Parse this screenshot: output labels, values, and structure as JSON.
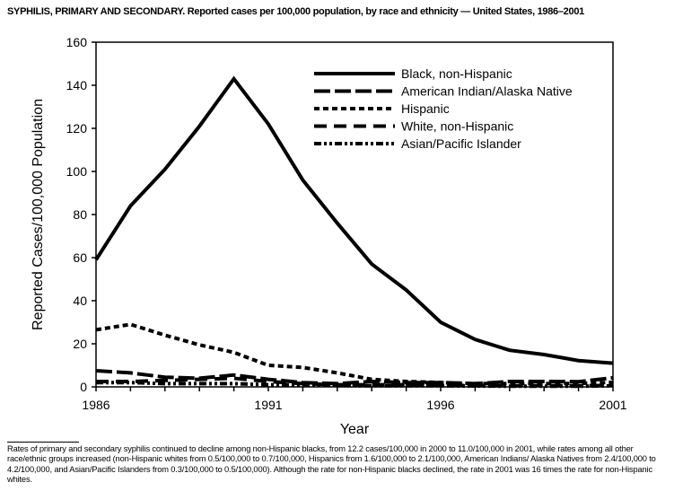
{
  "chart_data": {
    "type": "line",
    "title": "SYPHILIS, PRIMARY AND SECONDARY. Reported cases per 100,000 population, by race and ethnicity — United States, 1986–2001",
    "xlabel": "Year",
    "ylabel": "Reported Cases/100,000 Population",
    "xlim": [
      1986,
      2001
    ],
    "ylim": [
      0,
      160
    ],
    "xticks": [
      1986,
      1991,
      1996,
      2001
    ],
    "yticks": [
      0,
      20,
      40,
      60,
      80,
      100,
      120,
      140,
      160
    ],
    "grid": false,
    "legend": "top-right",
    "x": [
      1986,
      1987,
      1988,
      1989,
      1990,
      1991,
      1992,
      1993,
      1994,
      1995,
      1996,
      1997,
      1998,
      1999,
      2000,
      2001
    ],
    "series": [
      {
        "name": "Black, non-Hispanic",
        "style": "solid",
        "values": [
          59,
          84,
          101,
          121,
          143,
          122,
          96,
          76,
          57,
          45,
          30,
          22,
          17,
          15,
          12.2,
          11.0
        ]
      },
      {
        "name": "American Indian/Alaska Native",
        "style": "long-dash",
        "values": [
          7.5,
          6.5,
          4.5,
          4,
          5.5,
          3.5,
          2,
          1.5,
          2.5,
          2,
          2,
          1.5,
          2.5,
          2.5,
          2.4,
          4.2
        ]
      },
      {
        "name": "Hispanic",
        "style": "short-dash",
        "values": [
          26.5,
          29,
          24,
          19.5,
          16,
          10,
          9,
          6.5,
          3.5,
          2.5,
          2,
          1.5,
          1.5,
          1.5,
          1.6,
          2.1
        ]
      },
      {
        "name": "White, non-Hispanic",
        "style": "long-dash-gap",
        "values": [
          2.5,
          2.5,
          3,
          3.5,
          4,
          2.5,
          1.5,
          1,
          1,
          1,
          0.8,
          0.6,
          0.5,
          0.6,
          0.5,
          0.7
        ]
      },
      {
        "name": "Asian/Pacific Islander",
        "style": "dash-dot-dot",
        "values": [
          2,
          2,
          1.5,
          1.5,
          1.5,
          1,
          0.8,
          0.6,
          0.5,
          0.5,
          0.5,
          0.4,
          0.3,
          0.3,
          0.3,
          0.5
        ]
      }
    ]
  },
  "footnote": "Rates of primary and secondary syphilis continued to decline among non-Hispanic blacks, from 12.2 cases/100,000 in 2000 to 11.0/100,000 in 2001, while rates among all other race/ethnic groups increased (non-Hispanic whites from 0.5/100,000 to 0.7/100,000, Hispanics from 1.6/100,000 to 2.1/100,000, American Indians/ Alaska Natives from 2.4/100,000 to 4.2/100,000, and Asian/Pacific Islanders from 0.3/100,000 to 0.5/100,000). Although the rate for non-Hispanic blacks declined, the rate in 2001 was 16 times the rate for non-Hispanic whites."
}
